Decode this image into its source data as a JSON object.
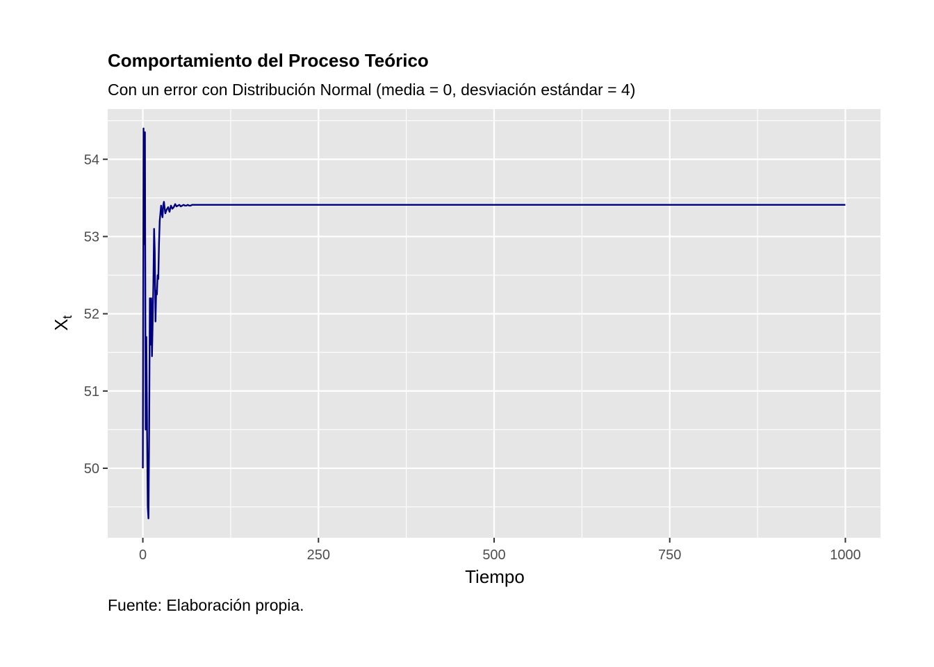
{
  "chart_data": {
    "type": "line",
    "title": "Comportamiento del Proceso Teórico",
    "subtitle": "Con un error con Distribución Normal (media = 0, desviación estándar = 4)",
    "xlabel": "Tiempo",
    "ylabel_main": "X",
    "ylabel_sub": "t",
    "caption": "Fuente: Elaboración propia.",
    "xlim": [
      -50,
      1050
    ],
    "ylim": [
      49.1,
      54.65
    ],
    "x_ticks": [
      0,
      250,
      500,
      750,
      1000
    ],
    "x_tick_labels": [
      "0",
      "250",
      "500",
      "750",
      "1000"
    ],
    "x_minor_ticks": [
      125,
      375,
      625,
      875
    ],
    "y_ticks": [
      50,
      51,
      52,
      53,
      54
    ],
    "y_tick_labels": [
      "50",
      "51",
      "52",
      "53",
      "54"
    ],
    "y_minor_ticks": [
      49.5,
      50.5,
      51.5,
      52.5,
      53.5,
      54.5
    ],
    "grid": true,
    "line_color": "#00007F",
    "panel_color": "#E6E6E6",
    "grid_color": "#FFFFFF",
    "series": [
      {
        "x": [
          0,
          1,
          2,
          3,
          4,
          5,
          6,
          7,
          8,
          9,
          10,
          11,
          12,
          13,
          14,
          15,
          16,
          17,
          18,
          19,
          20,
          21,
          22,
          23,
          24,
          25,
          26,
          27,
          28,
          29,
          30,
          32,
          34,
          36,
          38,
          40,
          42,
          44,
          46,
          48,
          50,
          52,
          54,
          56,
          58,
          60,
          62,
          64,
          66,
          68,
          70,
          75,
          80,
          90,
          100,
          150,
          200,
          300,
          400,
          500,
          600,
          700,
          800,
          900,
          1000
        ],
        "values": [
          50.0,
          54.4,
          52.9,
          54.35,
          50.5,
          51.7,
          50.5,
          49.5,
          49.35,
          50.5,
          52.2,
          51.6,
          52.2,
          51.45,
          51.9,
          52.4,
          53.1,
          52.8,
          51.9,
          52.3,
          52.25,
          52.5,
          52.45,
          52.9,
          53.2,
          53.3,
          53.4,
          53.3,
          53.25,
          53.4,
          53.45,
          53.3,
          53.35,
          53.38,
          53.32,
          53.4,
          53.36,
          53.38,
          53.42,
          53.39,
          53.4,
          53.41,
          53.39,
          53.4,
          53.41,
          53.4,
          53.4,
          53.41,
          53.4,
          53.4,
          53.41,
          53.41,
          53.41,
          53.41,
          53.41,
          53.41,
          53.41,
          53.41,
          53.41,
          53.41,
          53.41,
          53.41,
          53.41,
          53.41,
          53.41
        ]
      }
    ]
  }
}
